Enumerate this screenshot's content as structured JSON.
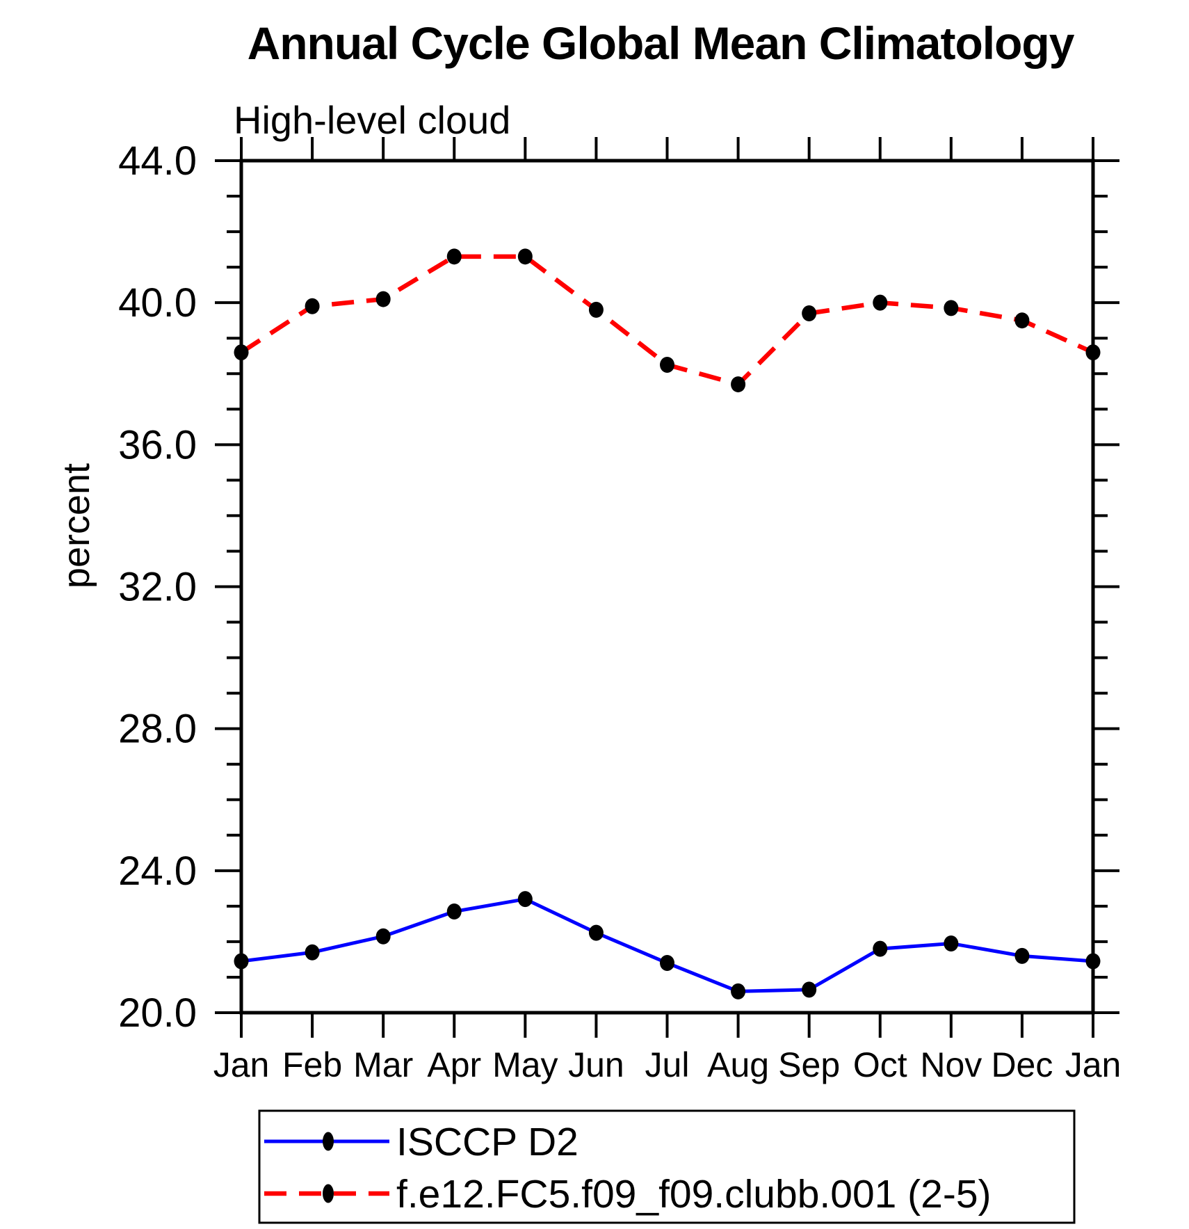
{
  "chart_data": {
    "type": "line",
    "title": "Annual Cycle Global Mean Climatology",
    "subtitle": "High-level cloud",
    "ylabel": "percent",
    "xlabel": "",
    "categories": [
      "Jan",
      "Feb",
      "Mar",
      "Apr",
      "May",
      "Jun",
      "Jul",
      "Aug",
      "Sep",
      "Oct",
      "Nov",
      "Dec",
      "Jan"
    ],
    "ylim": [
      20.0,
      44.0
    ],
    "ytick_major_step": 4.0,
    "ytick_minor_step": 1.0,
    "ytick_labels": [
      "20.0",
      "24.0",
      "28.0",
      "32.0",
      "36.0",
      "40.0",
      "44.0"
    ],
    "grid": false,
    "legend_position": "bottom-left-box",
    "axis_color": "#000000",
    "background_color": "#ffffff",
    "series": [
      {
        "name": "ISCCP D2",
        "color": "#0000ff",
        "line_style": "solid",
        "marker": "filled-circle",
        "marker_color": "#000000",
        "values": [
          21.45,
          21.7,
          22.15,
          22.85,
          23.2,
          22.25,
          21.4,
          20.6,
          20.65,
          21.8,
          21.95,
          21.6,
          21.45
        ]
      },
      {
        "name": "f.e12.FC5.f09_f09.clubb.001 (2-5)",
        "color": "#ff0000",
        "line_style": "dashed",
        "marker": "filled-circle",
        "marker_color": "#000000",
        "values": [
          38.6,
          39.9,
          40.1,
          41.3,
          41.3,
          39.8,
          38.25,
          37.7,
          39.7,
          40.0,
          39.85,
          39.5,
          38.6
        ]
      }
    ]
  }
}
